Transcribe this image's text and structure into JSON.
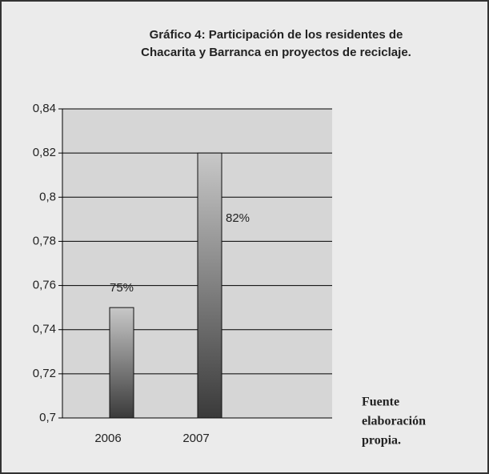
{
  "chart_data": {
    "type": "bar",
    "title": [
      "Gráfico 4: Participación de los residentes de",
      "Chacarita y Barranca en proyectos de reciclaje."
    ],
    "categories": [
      "2006",
      "2007"
    ],
    "values": [
      0.75,
      0.82
    ],
    "value_labels": [
      "75%",
      "82%"
    ],
    "ylim": [
      0.7,
      0.84
    ],
    "yticks": [
      {
        "value": 0.7,
        "label": "0,7"
      },
      {
        "value": 0.72,
        "label": "0,72"
      },
      {
        "value": 0.74,
        "label": "0,74"
      },
      {
        "value": 0.76,
        "label": "0,76"
      },
      {
        "value": 0.78,
        "label": "0,78"
      },
      {
        "value": 0.8,
        "label": "0,8"
      },
      {
        "value": 0.82,
        "label": "0,82"
      },
      {
        "value": 0.84,
        "label": "0,84"
      }
    ],
    "grid": true,
    "annotation": [
      "Fuente",
      "elaboración",
      "propia."
    ]
  }
}
